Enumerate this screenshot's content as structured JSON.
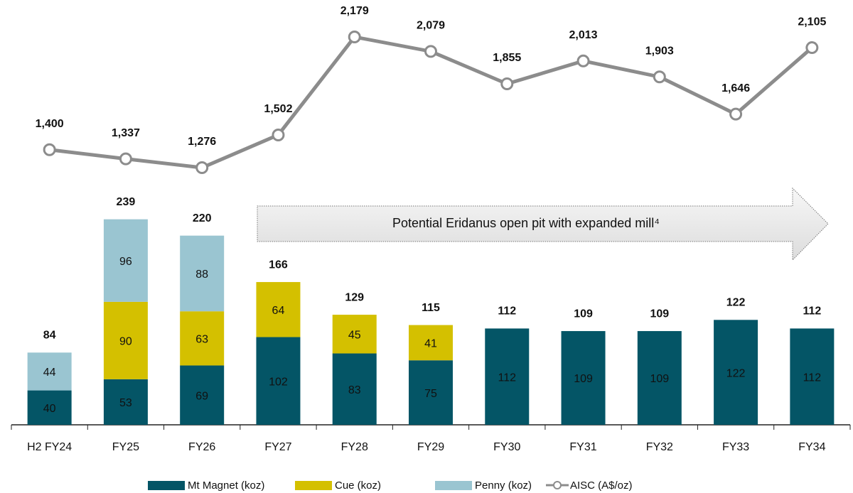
{
  "chart_data": {
    "type": "bar",
    "stacked": true,
    "categories": [
      "H2 FY24",
      "FY25",
      "FY26",
      "FY27",
      "FY28",
      "FY29",
      "FY30",
      "FY31",
      "FY32",
      "FY33",
      "FY34"
    ],
    "series": [
      {
        "name": "Mt Magnet (koz)",
        "color": "#045566",
        "values": [
          40,
          53,
          69,
          102,
          83,
          75,
          112,
          109,
          109,
          122,
          112
        ]
      },
      {
        "name": "Cue (koz)",
        "color": "#d4c000",
        "values": [
          null,
          90,
          63,
          64,
          45,
          41,
          null,
          null,
          null,
          null,
          null
        ]
      },
      {
        "name": "Penny (koz)",
        "color": "#9ac5d1",
        "values": [
          44,
          96,
          88,
          null,
          null,
          null,
          null,
          null,
          null,
          null,
          null
        ]
      },
      {
        "name": "AISC (A$/oz)",
        "color": "#8c8c8c",
        "type": "line",
        "axis": "y2",
        "values": [
          1400,
          1337,
          1276,
          1502,
          2179,
          2079,
          1855,
          2013,
          1903,
          1646,
          2105
        ],
        "value_labels": [
          "1,400",
          "1,337",
          "1,276",
          "1,502",
          "2,179",
          "2,079",
          "1,855",
          "2,013",
          "1,903",
          "1,646",
          "2,105"
        ]
      }
    ],
    "totals": [
      84,
      239,
      220,
      166,
      129,
      115,
      112,
      109,
      109,
      122,
      112
    ],
    "annotation": "Potential Eridanus open pit with expanded mill⁴",
    "ylim": [
      0,
      494
    ],
    "y2lim": [
      -500,
      2434
    ],
    "legend": "bottom"
  }
}
